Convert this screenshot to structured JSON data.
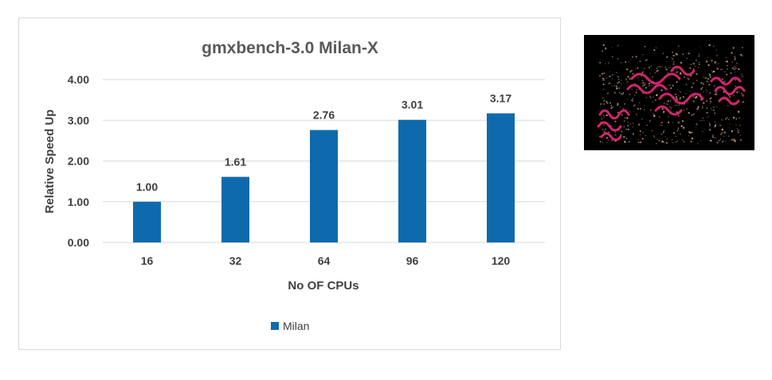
{
  "chart_data": {
    "type": "bar",
    "title": "gmxbench-3.0 Milan-X",
    "xlabel": "No OF CPUs",
    "ylabel": "Relative Speed Up",
    "categories": [
      "16",
      "32",
      "64",
      "96",
      "120"
    ],
    "series": [
      {
        "name": "Milan",
        "values": [
          1.0,
          1.61,
          2.76,
          3.01,
          3.17
        ]
      }
    ],
    "data_labels": [
      "1.00",
      "1.61",
      "2.76",
      "3.01",
      "3.17"
    ],
    "yticks": [
      "0.00",
      "1.00",
      "2.00",
      "3.00",
      "4.00"
    ],
    "ylim": [
      0,
      4
    ],
    "grid": true,
    "legend": "bottom",
    "colors": {
      "bar": "#0f6aad",
      "grid": "#d9d9d9",
      "text": "#404040",
      "title": "#595959"
    }
  },
  "side_image": {
    "icon": "protein-molecule-render"
  }
}
